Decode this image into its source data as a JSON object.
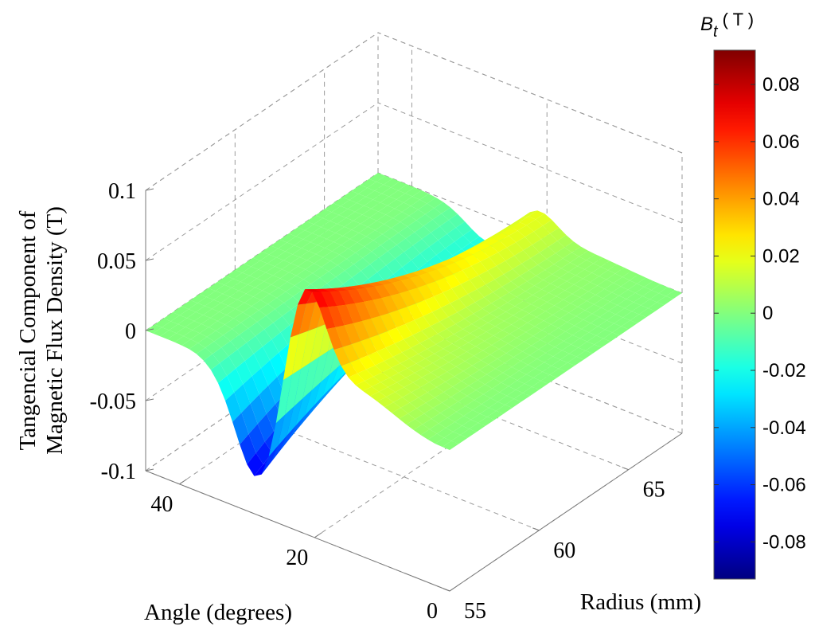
{
  "chart_data": {
    "type": "surface3d",
    "title": "",
    "xlabel": "Radius (mm)",
    "ylabel": "Angle (degrees)",
    "zlabel_lines": [
      "Tangencial Component of",
      "Magnetic Flux Density (T)"
    ],
    "xlim": [
      55,
      68
    ],
    "ylim": [
      0,
      45
    ],
    "zlim": [
      -0.1,
      0.1
    ],
    "x_ticks": [
      "55",
      "60",
      "65"
    ],
    "x_tick_values": [
      55,
      60,
      65
    ],
    "y_ticks": [
      "0",
      "20",
      "40"
    ],
    "y_tick_values": [
      0,
      20,
      40
    ],
    "z_ticks": [
      "-0.1",
      "-0.05",
      "0",
      "0.05",
      "0.1"
    ],
    "z_tick_values": [
      -0.1,
      -0.05,
      0,
      0.05,
      0.1
    ],
    "grid": true,
    "colormap": "jet",
    "surface_features": {
      "trough": {
        "angle": 28,
        "radius": 55,
        "value": -0.093
      },
      "peak": {
        "angle": 22,
        "radius": 55,
        "value": 0.091
      },
      "edges_value": 0
    },
    "colorbar": {
      "title_symbol": "B",
      "title_subscript": "t",
      "title_unit": "( T )",
      "range": [
        -0.093,
        0.092
      ],
      "ticks": [
        "-0.08",
        "-0.06",
        "-0.04",
        "-0.02",
        "0",
        "0.02",
        "0.04",
        "0.06",
        "0.08"
      ],
      "tick_values": [
        -0.08,
        -0.06,
        -0.04,
        -0.02,
        0,
        0.02,
        0.04,
        0.06,
        0.08
      ]
    }
  }
}
